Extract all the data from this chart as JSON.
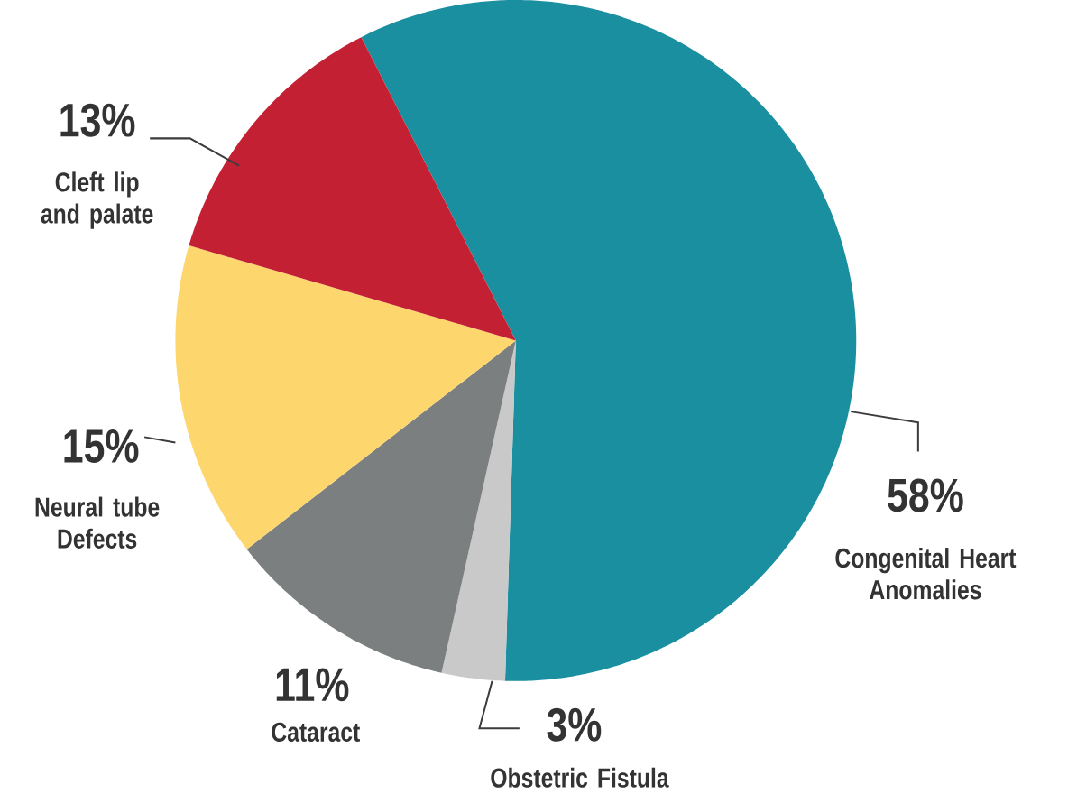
{
  "chart_data": {
    "type": "pie",
    "categories": [
      "Congenital Heart Anomalies",
      "Obstetric Fistula",
      "Cataract",
      "Neural tube Defects",
      "Cleft lip and palate"
    ],
    "values": [
      58,
      3,
      11,
      15,
      13
    ],
    "value_labels": [
      "58%",
      "3%",
      "11%",
      "15%",
      "13%"
    ],
    "colors": [
      "#1a8fa0",
      "#c9c9c9",
      "#7b7f7f",
      "#fdd76e",
      "#c42033"
    ]
  }
}
